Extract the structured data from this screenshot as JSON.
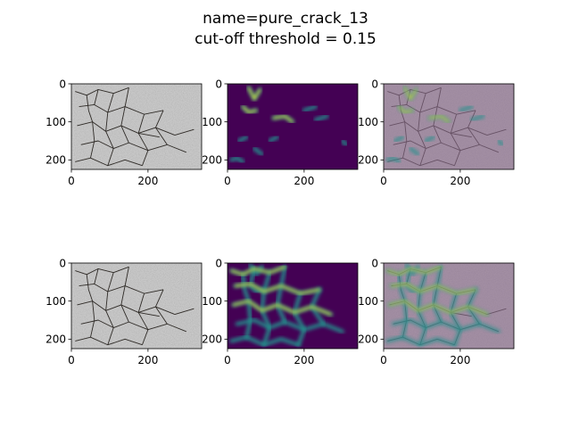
{
  "figure": {
    "title_line1": "name=pure_crack_13",
    "title_line2": "cut-off threshold = 0.15"
  },
  "chart_data": [
    {
      "type": "image",
      "row": 1,
      "col": 1,
      "kind": "crack-photo",
      "xlim": [
        0,
        340
      ],
      "ylim": [
        225,
        0
      ],
      "xticks": [
        "0",
        "200"
      ],
      "yticks": [
        "0",
        "100",
        "200"
      ]
    },
    {
      "type": "heatmap",
      "row": 1,
      "col": 2,
      "kind": "crack-heatmap",
      "cmap": "viridis",
      "xlim": [
        0,
        340
      ],
      "ylim": [
        225,
        0
      ],
      "xticks": [
        "0",
        "200"
      ],
      "yticks": [
        "0",
        "100",
        "200"
      ]
    },
    {
      "type": "image",
      "row": 1,
      "col": 3,
      "kind": "overlay",
      "xlim": [
        0,
        340
      ],
      "ylim": [
        225,
        0
      ],
      "xticks": [
        "0",
        "200"
      ],
      "yticks": [
        "0",
        "100",
        "200"
      ]
    },
    {
      "type": "image",
      "row": 2,
      "col": 1,
      "kind": "crack-photo",
      "xlim": [
        0,
        340
      ],
      "ylim": [
        225,
        0
      ],
      "xticks": [
        "0",
        "200"
      ],
      "yticks": [
        "0",
        "100",
        "200"
      ]
    },
    {
      "type": "heatmap",
      "row": 2,
      "col": 2,
      "kind": "crack-heatmap",
      "cmap": "viridis",
      "xlim": [
        0,
        340
      ],
      "ylim": [
        225,
        0
      ],
      "xticks": [
        "0",
        "200"
      ],
      "yticks": [
        "0",
        "100",
        "200"
      ]
    },
    {
      "type": "image",
      "row": 2,
      "col": 3,
      "kind": "overlay",
      "xlim": [
        0,
        340
      ],
      "ylim": [
        225,
        0
      ],
      "xticks": [
        "0",
        "200"
      ],
      "yticks": [
        "0",
        "100",
        "200"
      ]
    }
  ],
  "colors": {
    "viridis_low": "#440154",
    "viridis_mid": "#21918c",
    "viridis_high": "#fde725",
    "overlay_tint": "#8a6a8c",
    "photo_base": "#c8c8c8"
  }
}
